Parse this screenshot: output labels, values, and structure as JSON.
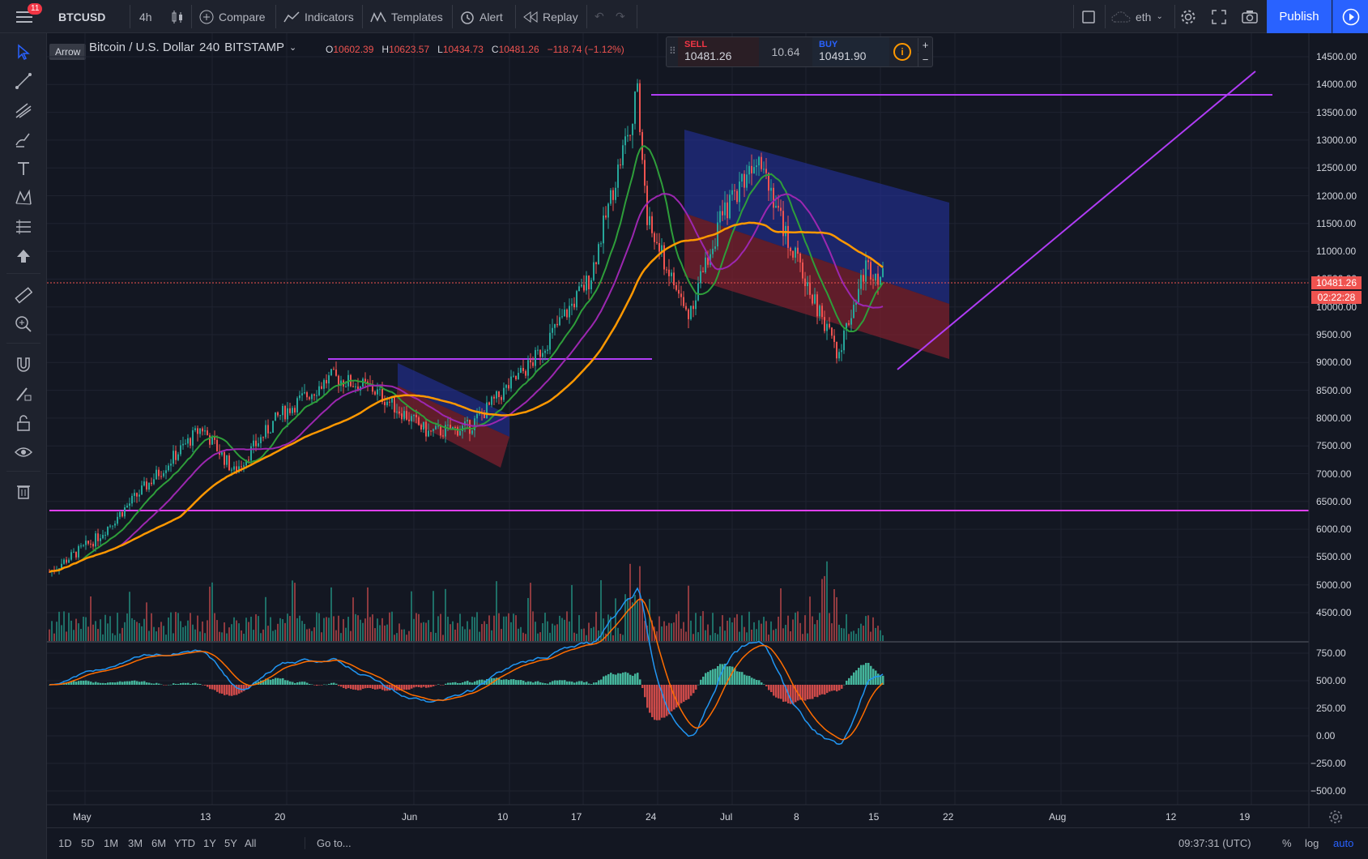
{
  "header": {
    "notification_count": "11",
    "symbol": "BTCUSD",
    "interval": "4h",
    "compare": "Compare",
    "indicators": "Indicators",
    "templates": "Templates",
    "alert": "Alert",
    "replay": "Replay",
    "layout_name": "eth",
    "publish": "Publish"
  },
  "tooltip": "Arrow",
  "legend": {
    "title": "Bitcoin / U.S. Dollar",
    "interval": "240",
    "exchange": "BITSTAMP",
    "open_label": "O",
    "open": "10602.39",
    "high_label": "H",
    "high": "10623.57",
    "low_label": "L",
    "low": "10434.73",
    "close_label": "C",
    "close": "10481.26",
    "change": "−118.74 (−1.12%)"
  },
  "trade": {
    "sell_label": "SELL",
    "sell_price": "10481.26",
    "spread": "10.64",
    "buy_label": "BUY",
    "buy_price": "10491.90",
    "plus": "+",
    "minus": "−"
  },
  "price_scale": [
    "14500.00",
    "14000.00",
    "13500.00",
    "13000.00",
    "12500.00",
    "12000.00",
    "11500.00",
    "11000.00",
    "10500.00",
    "10000.00",
    "9500.00",
    "9000.00",
    "8500.00",
    "8000.00",
    "7500.00",
    "7000.00",
    "6500.00",
    "6000.00",
    "5500.00",
    "5000.00",
    "4500.00"
  ],
  "last_price": "10481.26",
  "countdown": "02:22:28",
  "macd_scale": [
    "750.00",
    "500.00",
    "250.00",
    "0.00",
    "−250.00",
    "−500.00"
  ],
  "time_axis": [
    "May",
    "13",
    "20",
    "Jun",
    "10",
    "17",
    "24",
    "Jul",
    "8",
    "15",
    "22",
    "Aug",
    "12",
    "19"
  ],
  "bottom": {
    "ranges": [
      "1D",
      "5D",
      "1M",
      "3M",
      "6M",
      "YTD",
      "1Y",
      "5Y",
      "All"
    ],
    "goto": "Go to...",
    "clock": "09:37:31 (UTC)",
    "pct": "%",
    "log": "log",
    "auto": "auto"
  },
  "colors": {
    "background": "#131722",
    "up": "#26a69a",
    "down": "#ef5350",
    "ma_green": "#2e9e3a",
    "ma_purple": "#9c27b0",
    "ma_orange": "#ff9800",
    "drawing_line": "#b03cf5",
    "accent": "#2962ff"
  },
  "chart_data": {
    "type": "candlestick",
    "symbol": "BTCUSD",
    "interval": "240",
    "ylim": [
      4200,
      14800
    ],
    "approx_path": [
      [
        "May 1",
        5200
      ],
      [
        "May 8",
        5800
      ],
      [
        "May 13",
        7800
      ],
      [
        "May 16",
        7000
      ],
      [
        "May 20",
        8000
      ],
      [
        "May 27",
        8700
      ],
      [
        "Jun 1",
        8500
      ],
      [
        "Jun 6",
        7700
      ],
      [
        "Jun 10",
        7800
      ],
      [
        "Jun 17",
        9000
      ],
      [
        "Jun 22",
        10500
      ],
      [
        "Jun 26",
        13800
      ],
      [
        "Jun 28",
        11500
      ],
      [
        "Jul 2",
        9800
      ],
      [
        "Jul 5",
        11500
      ],
      [
        "Jul 10",
        12800
      ],
      [
        "Jul 13",
        11300
      ],
      [
        "Jul 17",
        9100
      ],
      [
        "Jul 20",
        10700
      ],
      [
        "Jul 22",
        10481.26
      ]
    ],
    "macd_ylim": [
      -600,
      800
    ]
  }
}
